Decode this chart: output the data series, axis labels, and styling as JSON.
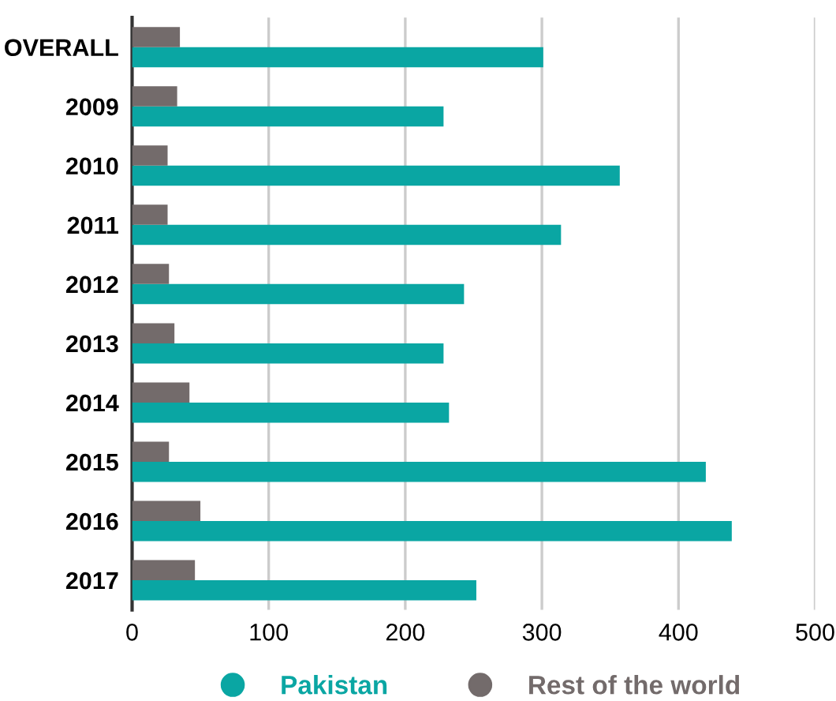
{
  "chart_data": {
    "type": "bar",
    "orientation": "horizontal",
    "categories": [
      "OVERALL",
      "2009",
      "2010",
      "2011",
      "2012",
      "2013",
      "2014",
      "2015",
      "2016",
      "2017"
    ],
    "series": [
      {
        "name": "Pakistan",
        "color": "#0aa6a3",
        "values": [
          301,
          228,
          357,
          314,
          243,
          228,
          232,
          420,
          439,
          252
        ]
      },
      {
        "name": "Rest of the world",
        "color": "#736b6b",
        "values": [
          35,
          33,
          26,
          26,
          27,
          31,
          42,
          27,
          50,
          46
        ]
      }
    ],
    "xlim": [
      0,
      500
    ],
    "xticks": [
      0,
      100,
      200,
      300,
      400,
      500
    ],
    "grid": "x",
    "legend": "bottom",
    "marker": "circle"
  }
}
